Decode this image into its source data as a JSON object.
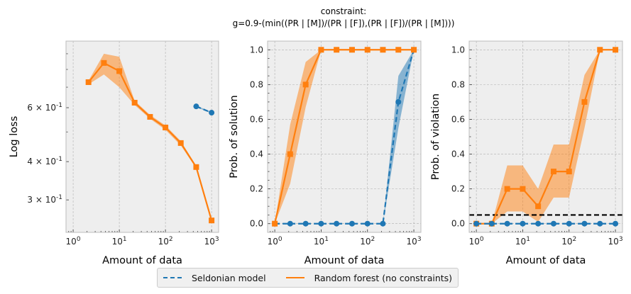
{
  "figure": {
    "title_line1": "constraint:",
    "title_line2": "g=0.9-(min((PR | [M])/(PR | [F]),(PR | [F])/(PR | [M])))"
  },
  "colors": {
    "seldonian": "#1f77b4",
    "random_forest": "#ff7f0e",
    "threshold": "#000000",
    "axes_bg": "#eeeeee",
    "grid": "#b0b0b0"
  },
  "legend": {
    "placement": "bottom-center",
    "items": [
      {
        "label": "Seldonian model",
        "style": "dashed",
        "color": "#1f77b4"
      },
      {
        "label": "Random forest (no constraints)",
        "style": "solid",
        "color": "#ff7f0e"
      }
    ]
  },
  "chart_data": [
    {
      "type": "line",
      "title": "",
      "xlabel": "Amount of data",
      "ylabel": "Log loss",
      "xscale": "log",
      "yscale": "log",
      "xlim": [
        0.7,
        1420
      ],
      "ylim": [
        0.235,
        0.99
      ],
      "xticks": [
        {
          "value": 1,
          "label": "10^0"
        },
        {
          "value": 10,
          "label": "10^1"
        },
        {
          "value": 100,
          "label": "10^2"
        },
        {
          "value": 1000,
          "label": "10^3"
        }
      ],
      "yticks": [
        {
          "value": 0.6,
          "label": "6 × 10^-1"
        },
        {
          "value": 0.4,
          "label": "4 × 10^-1"
        },
        {
          "value": 0.3,
          "label": "3 × 10^-1"
        }
      ],
      "yminor": [
        0.7,
        0.8,
        0.9,
        0.5
      ],
      "grid": true,
      "series": [
        {
          "name": "Random forest (no constraints)",
          "color": "#ff7f0e",
          "style": "solid",
          "marker": "square",
          "x": [
            2.15,
            4.64,
            10,
            21.5,
            46.4,
            100,
            215,
            464,
            1000
          ],
          "y": [
            0.727,
            0.84,
            0.79,
            0.623,
            0.56,
            0.517,
            0.46,
            0.384,
            0.257
          ],
          "lower": [
            0.715,
            0.77,
            0.7,
            0.612,
            0.552,
            0.508,
            0.452,
            0.38,
            0.255
          ],
          "upper": [
            0.735,
            0.9,
            0.88,
            0.632,
            0.568,
            0.525,
            0.467,
            0.388,
            0.259
          ]
        },
        {
          "name": "Seldonian model",
          "color": "#1f77b4",
          "style": "dashed",
          "marker": "circle",
          "x": [
            464,
            1000
          ],
          "y": [
            0.606,
            0.578
          ],
          "lower": [
            0.603,
            0.575
          ],
          "upper": [
            0.609,
            0.581
          ]
        }
      ]
    },
    {
      "type": "line",
      "title": "",
      "xlabel": "Amount of data",
      "ylabel": "Prob. of solution",
      "xscale": "log",
      "yscale": "linear",
      "xlim": [
        0.7,
        1420
      ],
      "ylim": [
        -0.05,
        1.05
      ],
      "xticks": [
        {
          "value": 1,
          "label": "10^0"
        },
        {
          "value": 10,
          "label": "10^1"
        },
        {
          "value": 100,
          "label": "10^2"
        },
        {
          "value": 1000,
          "label": "10^3"
        }
      ],
      "yticks": [
        {
          "value": 0,
          "label": "0.0"
        },
        {
          "value": 0.2,
          "label": "0.2"
        },
        {
          "value": 0.4,
          "label": "0.4"
        },
        {
          "value": 0.6,
          "label": "0.6"
        },
        {
          "value": 0.8,
          "label": "0.8"
        },
        {
          "value": 1,
          "label": "1.0"
        }
      ],
      "grid": true,
      "series": [
        {
          "name": "Random forest (no constraints)",
          "color": "#ff7f0e",
          "style": "solid",
          "marker": "square",
          "x": [
            1,
            2.15,
            4.64,
            10,
            21.5,
            46.4,
            100,
            215,
            464,
            1000
          ],
          "y": [
            0,
            0.4,
            0.8,
            1,
            1,
            1,
            1,
            1,
            1,
            1
          ],
          "lower": [
            0,
            0.23,
            0.67,
            1,
            1,
            1,
            1,
            1,
            1,
            1
          ],
          "upper": [
            0,
            0.57,
            0.93,
            1,
            1,
            1,
            1,
            1,
            1,
            1
          ]
        },
        {
          "name": "Seldonian model",
          "color": "#1f77b4",
          "style": "dashed",
          "marker": "circle",
          "x": [
            1,
            2.15,
            4.64,
            10,
            21.5,
            46.4,
            100,
            215,
            464,
            1000
          ],
          "y": [
            0,
            0,
            0,
            0,
            0,
            0,
            0,
            0,
            0.7,
            1
          ],
          "lower": [
            0,
            0,
            0,
            0,
            0,
            0,
            0,
            0,
            0.55,
            1
          ],
          "upper": [
            0,
            0,
            0,
            0,
            0,
            0,
            0,
            0,
            0.85,
            1
          ]
        }
      ]
    },
    {
      "type": "line",
      "title": "",
      "xlabel": "Amount of data",
      "ylabel": "Prob. of violation",
      "xscale": "log",
      "yscale": "linear",
      "xlim": [
        0.7,
        1420
      ],
      "ylim": [
        -0.05,
        1.05
      ],
      "xticks": [
        {
          "value": 1,
          "label": "10^0"
        },
        {
          "value": 10,
          "label": "10^1"
        },
        {
          "value": 100,
          "label": "10^2"
        },
        {
          "value": 1000,
          "label": "10^3"
        }
      ],
      "yticks": [
        {
          "value": 0,
          "label": "0.0"
        },
        {
          "value": 0.2,
          "label": "0.2"
        },
        {
          "value": 0.4,
          "label": "0.4"
        },
        {
          "value": 0.6,
          "label": "0.6"
        },
        {
          "value": 0.8,
          "label": "0.8"
        },
        {
          "value": 1,
          "label": "1.0"
        }
      ],
      "grid": true,
      "hline": {
        "y": 0.05,
        "color": "#000000",
        "style": "dashed"
      },
      "series": [
        {
          "name": "Random forest (no constraints)",
          "color": "#ff7f0e",
          "style": "solid",
          "marker": "square",
          "x": [
            1,
            2.15,
            4.64,
            10,
            21.5,
            46.4,
            100,
            215,
            464,
            1000
          ],
          "y": [
            0,
            0,
            0.2,
            0.2,
            0.1,
            0.3,
            0.3,
            0.7,
            1,
            1
          ],
          "lower": [
            0,
            0,
            0.07,
            0.07,
            0.01,
            0.15,
            0.15,
            0.55,
            1,
            1
          ],
          "upper": [
            0,
            0,
            0.335,
            0.335,
            0.2,
            0.455,
            0.455,
            0.855,
            1,
            1
          ]
        },
        {
          "name": "Seldonian model",
          "color": "#1f77b4",
          "style": "dashed",
          "marker": "circle",
          "x": [
            1,
            2.15,
            4.64,
            10,
            21.5,
            46.4,
            100,
            215,
            464,
            1000
          ],
          "y": [
            0,
            0,
            0,
            0,
            0,
            0,
            0,
            0,
            0,
            0
          ],
          "lower": [
            0,
            0,
            0,
            0,
            0,
            0,
            0,
            0,
            0,
            0
          ],
          "upper": [
            0,
            0,
            0,
            0,
            0,
            0,
            0,
            0,
            0,
            0
          ]
        }
      ]
    }
  ]
}
